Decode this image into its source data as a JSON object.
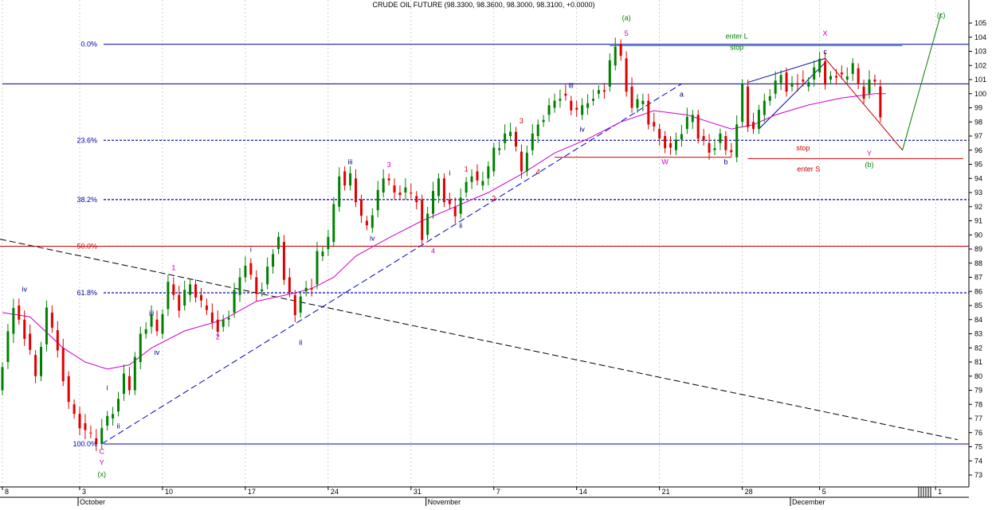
{
  "chart_data": {
    "type": "candlestick",
    "title": "CRUDE OIL FUTURE (98.3300, 98.3600, 98.3000, 98.3100, +0.0000)",
    "ylim": [
      72,
      106
    ],
    "y_ticks": [
      73,
      74,
      75,
      76,
      77,
      78,
      79,
      80,
      81,
      82,
      83,
      84,
      85,
      86,
      87,
      88,
      89,
      90,
      91,
      92,
      93,
      94,
      95,
      96,
      97,
      98,
      99,
      100,
      101,
      102,
      103,
      104,
      105
    ],
    "x_ticks": [
      {
        "t": 0,
        "label": "8"
      },
      {
        "t": 14,
        "label": "3"
      },
      {
        "t": 29,
        "label": "10"
      },
      {
        "t": 44,
        "label": "17"
      },
      {
        "t": 59,
        "label": "24"
      },
      {
        "t": 74,
        "label": "31"
      },
      {
        "t": 89,
        "label": "7"
      },
      {
        "t": 104,
        "label": "14"
      },
      {
        "t": 119,
        "label": "21"
      },
      {
        "t": 134,
        "label": "28"
      },
      {
        "t": 148,
        "label": "5"
      },
      {
        "t": 169,
        "label": "1"
      }
    ],
    "months": [
      {
        "t": 14,
        "label": "October"
      },
      {
        "t": 77,
        "label": "November"
      },
      {
        "t": 143,
        "label": "December"
      }
    ],
    "colors": {
      "up": "#008000",
      "down": "#e00000",
      "ma": "#cc00cc",
      "blue": "#0000aa",
      "red": "#cc0000",
      "green": "#008000",
      "magenta": "#cc00cc"
    },
    "series": [
      {
        "t": 0,
        "v": 79.0
      },
      {
        "t": 3,
        "v": 85.0
      },
      {
        "t": 5,
        "v": 83.0
      },
      {
        "t": 7,
        "v": 80.0
      },
      {
        "t": 9,
        "v": 84.5
      },
      {
        "t": 11,
        "v": 82.0
      },
      {
        "t": 13,
        "v": 78.0
      },
      {
        "t": 16,
        "v": 76.0
      },
      {
        "t": 18,
        "v": 75.2
      },
      {
        "t": 19,
        "v": 76.5
      },
      {
        "t": 21,
        "v": 77.5
      },
      {
        "t": 23,
        "v": 80.0
      },
      {
        "t": 24,
        "v": 79.0
      },
      {
        "t": 26,
        "v": 83.0
      },
      {
        "t": 28,
        "v": 84.0
      },
      {
        "t": 29,
        "v": 83.0
      },
      {
        "t": 31,
        "v": 86.5
      },
      {
        "t": 33,
        "v": 85.0
      },
      {
        "t": 35,
        "v": 86.5
      },
      {
        "t": 37,
        "v": 85.0
      },
      {
        "t": 39,
        "v": 84.0
      },
      {
        "t": 40,
        "v": 83.5
      },
      {
        "t": 42,
        "v": 84.5
      },
      {
        "t": 44,
        "v": 87.0
      },
      {
        "t": 45,
        "v": 88.0
      },
      {
        "t": 47,
        "v": 86.0
      },
      {
        "t": 48,
        "v": 86.5
      },
      {
        "t": 50,
        "v": 89.0
      },
      {
        "t": 51,
        "v": 89.5
      },
      {
        "t": 52,
        "v": 87.0
      },
      {
        "t": 54,
        "v": 84.5
      },
      {
        "t": 55,
        "v": 86.0
      },
      {
        "t": 57,
        "v": 86.5
      },
      {
        "t": 58,
        "v": 88.5
      },
      {
        "t": 60,
        "v": 89.5
      },
      {
        "t": 61,
        "v": 92.0
      },
      {
        "t": 62,
        "v": 94.5
      },
      {
        "t": 63,
        "v": 93.5
      },
      {
        "t": 64,
        "v": 94.0
      },
      {
        "t": 66,
        "v": 91.0
      },
      {
        "t": 67,
        "v": 90.5
      },
      {
        "t": 69,
        "v": 93.0
      },
      {
        "t": 70,
        "v": 94.0
      },
      {
        "t": 72,
        "v": 93.0
      },
      {
        "t": 74,
        "v": 93.0
      },
      {
        "t": 76,
        "v": 92.5
      },
      {
        "t": 77,
        "v": 90.0
      },
      {
        "t": 78,
        "v": 91.5
      },
      {
        "t": 80,
        "v": 94.0
      },
      {
        "t": 81,
        "v": 92.5
      },
      {
        "t": 83,
        "v": 91.5
      },
      {
        "t": 84,
        "v": 93.0
      },
      {
        "t": 86,
        "v": 94.5
      },
      {
        "t": 87,
        "v": 93.5
      },
      {
        "t": 89,
        "v": 94.5
      },
      {
        "t": 90,
        "v": 96.0
      },
      {
        "t": 92,
        "v": 97.0
      },
      {
        "t": 93,
        "v": 97.3
      },
      {
        "t": 95,
        "v": 94.5
      },
      {
        "t": 96,
        "v": 96.0
      },
      {
        "t": 98,
        "v": 98.0
      },
      {
        "t": 100,
        "v": 99.0
      },
      {
        "t": 102,
        "v": 100.0
      },
      {
        "t": 103,
        "v": 99.5
      },
      {
        "t": 105,
        "v": 98.5
      },
      {
        "t": 107,
        "v": 99.5
      },
      {
        "t": 108,
        "v": 100.0
      },
      {
        "t": 110,
        "v": 100.5
      },
      {
        "t": 111,
        "v": 102.0
      },
      {
        "t": 112,
        "v": 103.5
      },
      {
        "t": 113,
        "v": 102.5
      },
      {
        "t": 114,
        "v": 100.5
      },
      {
        "t": 115,
        "v": 99.0
      },
      {
        "t": 117,
        "v": 99.5
      },
      {
        "t": 118,
        "v": 98.0
      },
      {
        "t": 120,
        "v": 97.0
      },
      {
        "t": 122,
        "v": 96.0
      },
      {
        "t": 124,
        "v": 97.5
      },
      {
        "t": 126,
        "v": 98.5
      },
      {
        "t": 127,
        "v": 97.0
      },
      {
        "t": 129,
        "v": 96.0
      },
      {
        "t": 131,
        "v": 97.0
      },
      {
        "t": 132,
        "v": 96.0
      },
      {
        "t": 133,
        "v": 95.5
      },
      {
        "t": 134,
        "v": 98.0
      },
      {
        "t": 135,
        "v": 100.5
      },
      {
        "t": 136,
        "v": 98.0
      },
      {
        "t": 137,
        "v": 97.5
      },
      {
        "t": 139,
        "v": 99.5
      },
      {
        "t": 140,
        "v": 100.0
      },
      {
        "t": 142,
        "v": 101.5
      },
      {
        "t": 143,
        "v": 100.5
      },
      {
        "t": 145,
        "v": 101.0
      },
      {
        "t": 146,
        "v": 100.5
      },
      {
        "t": 148,
        "v": 101.5
      },
      {
        "t": 149,
        "v": 102.3
      },
      {
        "t": 150,
        "v": 101.0
      },
      {
        "t": 152,
        "v": 101.5
      },
      {
        "t": 153,
        "v": 101.0
      },
      {
        "t": 155,
        "v": 101.8
      },
      {
        "t": 156,
        "v": 100.5
      },
      {
        "t": 157,
        "v": 100.0
      },
      {
        "t": 158,
        "v": 101.0
      },
      {
        "t": 159,
        "v": 100.5
      },
      {
        "t": 160,
        "v": 98.5
      }
    ],
    "moving_average": [
      {
        "t": 0,
        "v": 84.5
      },
      {
        "t": 5,
        "v": 84.2
      },
      {
        "t": 11,
        "v": 82.0
      },
      {
        "t": 15,
        "v": 81.0
      },
      {
        "t": 19,
        "v": 80.5
      },
      {
        "t": 23,
        "v": 80.8
      },
      {
        "t": 27,
        "v": 82.0
      },
      {
        "t": 33,
        "v": 83.2
      },
      {
        "t": 40,
        "v": 84.0
      },
      {
        "t": 46,
        "v": 85.3
      },
      {
        "t": 52,
        "v": 85.8
      },
      {
        "t": 56,
        "v": 86.2
      },
      {
        "t": 60,
        "v": 87.0
      },
      {
        "t": 64,
        "v": 88.5
      },
      {
        "t": 70,
        "v": 89.8
      },
      {
        "t": 76,
        "v": 91.0
      },
      {
        "t": 82,
        "v": 92.0
      },
      {
        "t": 88,
        "v": 93.0
      },
      {
        "t": 94,
        "v": 94.3
      },
      {
        "t": 100,
        "v": 95.8
      },
      {
        "t": 106,
        "v": 96.8
      },
      {
        "t": 112,
        "v": 98.0
      },
      {
        "t": 118,
        "v": 98.8
      },
      {
        "t": 124,
        "v": 98.5
      },
      {
        "t": 128,
        "v": 98.0
      },
      {
        "t": 132,
        "v": 97.5
      },
      {
        "t": 136,
        "v": 97.8
      },
      {
        "t": 140,
        "v": 98.5
      },
      {
        "t": 146,
        "v": 99.2
      },
      {
        "t": 152,
        "v": 99.7
      },
      {
        "t": 158,
        "v": 100.0
      },
      {
        "t": 160,
        "v": 100.0
      }
    ],
    "fib_levels": [
      {
        "label": "0.0%",
        "v": 103.5,
        "color": "#0000cc",
        "dash": false
      },
      {
        "label": "23.6%",
        "v": 96.7,
        "color": "#0000aa",
        "dash": true
      },
      {
        "label": "38.2%",
        "v": 92.5,
        "color": "#0000aa",
        "dash": true
      },
      {
        "label": "50.0%",
        "v": 89.2,
        "color": "#cc0000",
        "dash": true
      },
      {
        "label": "61.8%",
        "v": 85.9,
        "color": "#0000aa",
        "dash": true
      },
      {
        "label": "100.0%",
        "v": 75.2,
        "color": "#0000cc",
        "dash": false
      }
    ],
    "lines": [
      {
        "name": "resistance-line",
        "points": [
          [
            0,
            100.7
          ],
          [
            175,
            100.7
          ]
        ],
        "color": "#000080",
        "dash": ""
      },
      {
        "name": "fib-50-solid",
        "points": [
          [
            -5,
            89.2
          ],
          [
            175,
            89.2
          ]
        ],
        "color": "#cc0000",
        "dash": ""
      },
      {
        "name": "downtrend-line",
        "points": [
          [
            -5,
            89.7
          ],
          [
            173,
            75.5
          ]
        ],
        "color": "#000000",
        "dash": "8,4"
      },
      {
        "name": "uptrend-line",
        "points": [
          [
            18,
            75.2
          ],
          [
            123,
            100.7
          ]
        ],
        "color": "#0000cc",
        "dash": "8,4"
      },
      {
        "name": "enter-long-line",
        "points": [
          [
            110,
            103.4
          ],
          [
            163,
            103.4
          ]
        ],
        "color": "#008000",
        "dash": ""
      },
      {
        "name": "enter-short-line",
        "points": [
          [
            100,
            95.4
          ],
          [
            100,
            95.4
          ]
        ],
        "color": "#cc0000",
        "dash": ""
      },
      {
        "name": "enter-short-line-2",
        "points": [
          [
            135,
            95.4
          ],
          [
            174,
            95.4
          ]
        ],
        "color": "#cc0000",
        "dash": ""
      },
      {
        "name": "stop-short-line",
        "points": [
          [
            100,
            95.5
          ],
          [
            132,
            95.5
          ]
        ],
        "color": "#cc0000",
        "dash": ""
      },
      {
        "name": "wedge-upper",
        "points": [
          [
            135,
            100.8
          ],
          [
            149,
            102.5
          ]
        ],
        "color": "#0000aa",
        "dash": ""
      },
      {
        "name": "wedge-lower",
        "points": [
          [
            137,
            97.5
          ],
          [
            149,
            102.2
          ]
        ],
        "color": "#0000aa",
        "dash": ""
      },
      {
        "name": "projection-down",
        "points": [
          [
            149,
            102.5
          ],
          [
            163,
            96.0
          ]
        ],
        "color": "#cc0000",
        "dash": ""
      },
      {
        "name": "projection-up",
        "points": [
          [
            163,
            96.0
          ],
          [
            170,
            105.7
          ]
        ],
        "color": "#008000",
        "dash": ""
      }
    ],
    "labels": [
      {
        "text": "iv",
        "t": 4,
        "v": 86.0,
        "color": "#000080"
      },
      {
        "text": "1",
        "t": 31,
        "v": 87.5,
        "color": "#cc00cc"
      },
      {
        "text": "iii",
        "t": 27,
        "v": 84.3,
        "color": "#000080"
      },
      {
        "text": "iv",
        "t": 28,
        "v": 81.5,
        "color": "#000080"
      },
      {
        "text": "i",
        "t": 19,
        "v": 79.0,
        "color": "#000080"
      },
      {
        "text": "ii",
        "t": 21,
        "v": 76.3,
        "color": "#000080"
      },
      {
        "text": "C",
        "t": 18,
        "v": 74.5,
        "color": "#cc00cc"
      },
      {
        "text": "Y",
        "t": 18,
        "v": 73.7,
        "color": "#cc00cc"
      },
      {
        "text": "(x)",
        "t": 18,
        "v": 72.9,
        "color": "#008000"
      },
      {
        "text": "2",
        "t": 39,
        "v": 82.6,
        "color": "#cc00cc"
      },
      {
        "text": "i",
        "t": 45,
        "v": 88.8,
        "color": "#000080"
      },
      {
        "text": "ii",
        "t": 54,
        "v": 82.2,
        "color": "#000080"
      },
      {
        "text": "iii",
        "t": 63,
        "v": 95.0,
        "color": "#000080"
      },
      {
        "text": "3",
        "t": 70,
        "v": 94.8,
        "color": "#cc00cc"
      },
      {
        "text": "iv",
        "t": 67,
        "v": 89.6,
        "color": "#000080"
      },
      {
        "text": "4",
        "t": 78,
        "v": 88.7,
        "color": "#cc00cc"
      },
      {
        "text": "i",
        "t": 81,
        "v": 94.2,
        "color": "#000080"
      },
      {
        "text": "ii",
        "t": 83,
        "v": 90.5,
        "color": "#000080"
      },
      {
        "text": "1",
        "t": 84,
        "v": 94.5,
        "color": "#cc0000"
      },
      {
        "text": "2",
        "t": 89,
        "v": 92.4,
        "color": "#cc0000"
      },
      {
        "text": "3",
        "t": 94,
        "v": 97.9,
        "color": "#cc0000"
      },
      {
        "text": "4",
        "t": 97,
        "v": 94.3,
        "color": "#cc0000"
      },
      {
        "text": "iii",
        "t": 103,
        "v": 100.4,
        "color": "#000080"
      },
      {
        "text": "iv",
        "t": 105,
        "v": 97.3,
        "color": "#000080"
      },
      {
        "text": "5",
        "t": 113,
        "v": 104.1,
        "color": "#cc00cc"
      },
      {
        "text": "(a)",
        "t": 113,
        "v": 105.2,
        "color": "#008000"
      },
      {
        "text": "a",
        "t": 123,
        "v": 99.8,
        "color": "#000080"
      },
      {
        "text": "W",
        "t": 120,
        "v": 95.0,
        "color": "#cc00cc"
      },
      {
        "text": "b",
        "t": 131,
        "v": 95.0,
        "color": "#000080"
      },
      {
        "text": "enter L",
        "t": 133,
        "v": 103.9,
        "color": "#008000"
      },
      {
        "text": "stop",
        "t": 133,
        "v": 103.1,
        "color": "#008000"
      },
      {
        "text": "X",
        "t": 149,
        "v": 104.1,
        "color": "#cc00cc"
      },
      {
        "text": "c",
        "t": 149,
        "v": 102.8,
        "color": "#000080"
      },
      {
        "text": "stop",
        "t": 145,
        "v": 96.0,
        "color": "#cc0000"
      },
      {
        "text": "enter S",
        "t": 146,
        "v": 94.5,
        "color": "#cc0000"
      },
      {
        "text": "Y",
        "t": 157,
        "v": 95.6,
        "color": "#cc00cc"
      },
      {
        "text": "(b)",
        "t": 157,
        "v": 94.8,
        "color": "#008000"
      },
      {
        "text": "(c)",
        "t": 170,
        "v": 105.4,
        "color": "#008000"
      }
    ]
  }
}
